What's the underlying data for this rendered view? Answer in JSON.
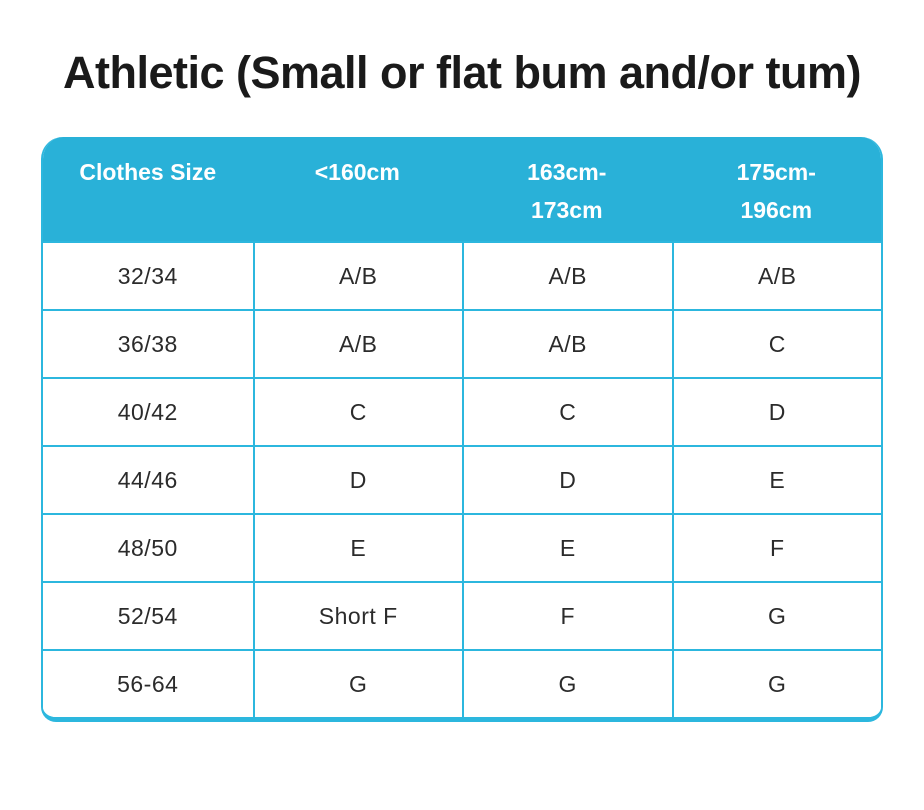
{
  "page": {
    "title": "Athletic (Small or flat bum and/or tum)"
  },
  "colors": {
    "header_bg": "#29b1d8",
    "grid_border": "#2cb7de",
    "header_text": "#ffffff",
    "body_text": "#2b2b2b",
    "title_text": "#1a1a1a"
  },
  "table": {
    "headers": [
      "Clothes Size",
      "<160cm",
      "163cm-\n173cm",
      "175cm-\n196cm"
    ],
    "rows": [
      {
        "cells": [
          "32/34",
          "A/B",
          "A/B",
          "A/B"
        ]
      },
      {
        "cells": [
          "36/38",
          "A/B",
          "A/B",
          "C"
        ]
      },
      {
        "cells": [
          "40/42",
          "C",
          "C",
          "D"
        ]
      },
      {
        "cells": [
          "44/46",
          "D",
          "D",
          "E"
        ]
      },
      {
        "cells": [
          "48/50",
          "E",
          "E",
          "F"
        ]
      },
      {
        "cells": [
          "52/54",
          "Short F",
          "F",
          "G"
        ]
      },
      {
        "cells": [
          "56-64",
          "G",
          "G",
          "G"
        ]
      }
    ]
  },
  "chart_data": {
    "type": "table",
    "title": "Athletic (Small or flat bum and/or tum)",
    "columns": [
      "Clothes Size",
      "<160cm",
      "163cm-173cm",
      "175cm-196cm"
    ],
    "rows": [
      [
        "32/34",
        "A/B",
        "A/B",
        "A/B"
      ],
      [
        "36/38",
        "A/B",
        "A/B",
        "C"
      ],
      [
        "40/42",
        "C",
        "C",
        "D"
      ],
      [
        "44/46",
        "D",
        "D",
        "E"
      ],
      [
        "48/50",
        "E",
        "E",
        "F"
      ],
      [
        "52/54",
        "Short F",
        "F",
        "G"
      ],
      [
        "56-64",
        "G",
        "G",
        "G"
      ]
    ]
  }
}
